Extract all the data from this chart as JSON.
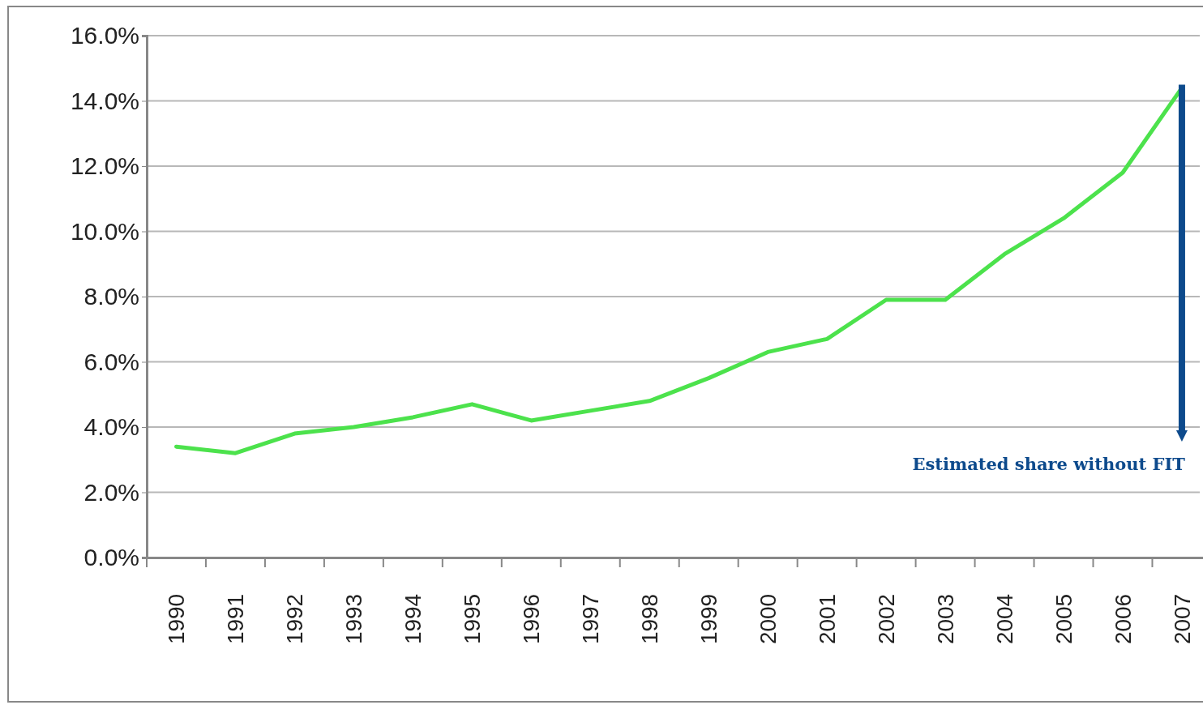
{
  "chart_data": {
    "type": "line",
    "categories": [
      "1990",
      "1991",
      "1992",
      "1993",
      "1994",
      "1995",
      "1996",
      "1997",
      "1998",
      "1999",
      "2000",
      "2001",
      "2002",
      "2003",
      "2004",
      "2005",
      "2006",
      "2007"
    ],
    "series": [
      {
        "color": "#4ce24c",
        "values": [
          3.4,
          3.2,
          3.8,
          4.0,
          4.3,
          4.7,
          4.2,
          4.5,
          4.8,
          5.5,
          6.3,
          6.7,
          7.9,
          7.9,
          9.3,
          10.4,
          11.8,
          14.4
        ]
      }
    ],
    "ylim": [
      0,
      16
    ],
    "yticks": [
      {
        "value": 0,
        "label": "0.0%"
      },
      {
        "value": 2,
        "label": "2.0%"
      },
      {
        "value": 4,
        "label": "4.0%"
      },
      {
        "value": 6,
        "label": "6.0%"
      },
      {
        "value": 8,
        "label": "8.0%"
      },
      {
        "value": 10,
        "label": "10.0%"
      },
      {
        "value": 12,
        "label": "12.0%"
      },
      {
        "value": 14,
        "label": "14.0%"
      },
      {
        "value": 16,
        "label": "16.0%"
      }
    ],
    "grid": "y",
    "marker": "none",
    "line_style": "solid",
    "annotations": [
      "Estimated share without FIT"
    ]
  }
}
